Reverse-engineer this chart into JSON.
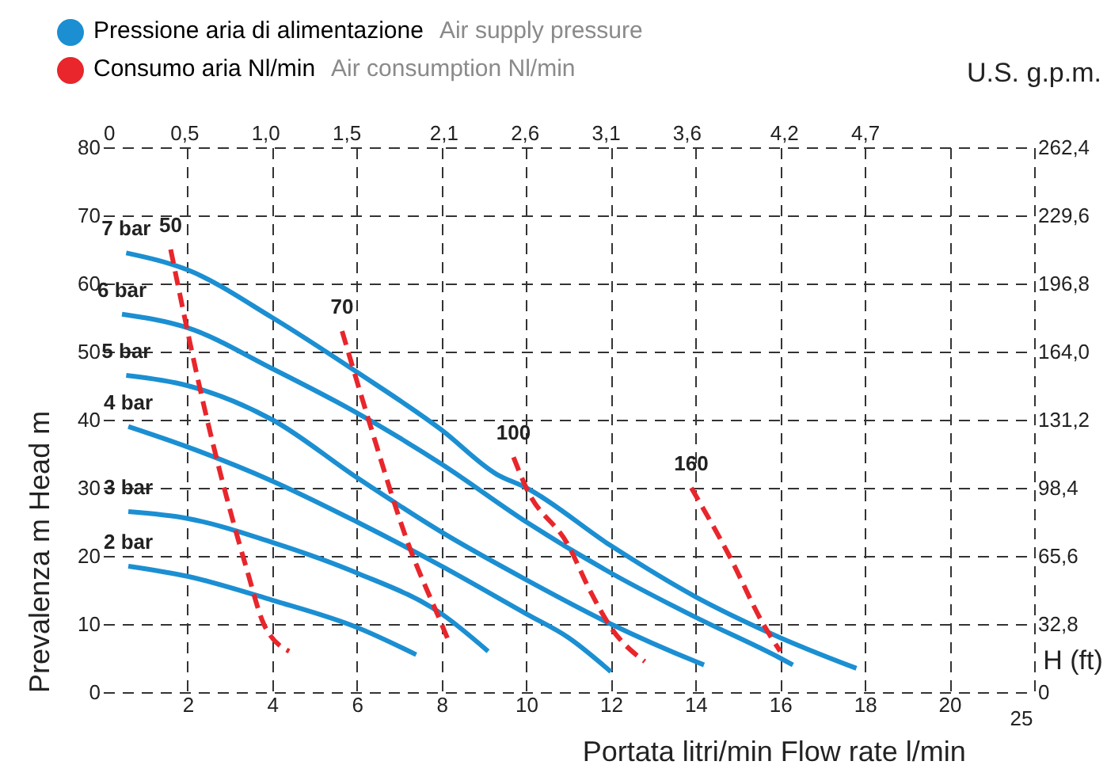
{
  "chart_data": {
    "type": "line",
    "xlabel": "Portata litri/min  Flow rate l/min",
    "ylabel": "Prevalenza m  Head m",
    "y2label": "H (ft)",
    "x2label": "U.S. g.p.m.",
    "annotations": [
      "Pressione aria di alimentazione",
      "Air supply pressure",
      "Consumo aria Nl/min",
      "Air consumption Nl/min",
      "25"
    ],
    "xlim": [
      0,
      22
    ],
    "xticks": [
      2,
      4,
      6,
      8,
      10,
      12,
      14,
      16,
      18,
      20,
      {
        "value": 22,
        "label": null
      }
    ],
    "ylim": [
      0,
      80
    ],
    "yticks": [
      0,
      10,
      20,
      30,
      40,
      50,
      60,
      70,
      80
    ],
    "y2lim": [
      0,
      262.4
    ],
    "y2ticks": [
      {
        "value": 0,
        "label": "0"
      },
      {
        "value": 32.8,
        "label": "32,8"
      },
      {
        "value": 65.6,
        "label": "65,6"
      },
      {
        "value": 98.4,
        "label": "98,4"
      },
      {
        "value": 131.2,
        "label": "131,2"
      },
      {
        "value": 164,
        "label": "164,0"
      },
      {
        "value": 196.8,
        "label": "196,8"
      },
      {
        "value": 229.6,
        "label": "229,6"
      },
      {
        "value": 262.4,
        "label": "262,4"
      }
    ],
    "x2lim": [
      0,
      5.745
    ],
    "x2ticks": [
      {
        "value": 0,
        "label": "0"
      },
      {
        "value": 0.5,
        "label": "0,5"
      },
      {
        "value": 1,
        "label": "1,0"
      },
      {
        "value": 1.5,
        "label": "1,5"
      },
      {
        "value": 2.1,
        "label": "2,1"
      },
      {
        "value": 2.6,
        "label": "2,6"
      },
      {
        "value": 3.1,
        "label": "3,1"
      },
      {
        "value": 3.6,
        "label": "3,6"
      },
      {
        "value": 4.2,
        "label": "4,2"
      },
      {
        "value": 4.7,
        "label": "4,7"
      }
    ],
    "grid": true,
    "line_style": "solid",
    "series": [
      {
        "name": "7 bar",
        "color": "#1b8fd2",
        "x": [
          0.55,
          2,
          4,
          6,
          8,
          9.3,
          10,
          12,
          14,
          16,
          17.8
        ],
        "values": [
          64.5,
          62,
          55,
          47,
          38.5,
          32,
          30,
          21.5,
          14,
          8,
          3.5
        ]
      },
      {
        "name": "6 bar",
        "color": "#1b8fd2",
        "x": [
          0.45,
          2,
          4,
          6,
          8,
          10,
          12,
          14,
          16,
          16.3
        ],
        "values": [
          55.5,
          53.5,
          47.5,
          41,
          33.5,
          25,
          17.5,
          11,
          5,
          4
        ]
      },
      {
        "name": "5 bar",
        "color": "#1b8fd2",
        "x": [
          0.55,
          2,
          4,
          6,
          8,
          10,
          12,
          14,
          14.2
        ],
        "values": [
          46.5,
          45,
          40,
          31.5,
          23.5,
          16.5,
          10,
          4.5,
          4
        ]
      },
      {
        "name": "4 bar",
        "color": "#1b8fd2",
        "x": [
          0.6,
          2,
          4,
          6,
          8,
          10,
          11,
          12
        ],
        "values": [
          39,
          36,
          31,
          25,
          18.5,
          11.5,
          8,
          3
        ]
      },
      {
        "name": "3 bar",
        "color": "#1b8fd2",
        "x": [
          0.6,
          2,
          4,
          6,
          8,
          9.1
        ],
        "values": [
          26.5,
          25.5,
          22,
          17.5,
          11.5,
          6
        ]
      },
      {
        "name": "2 bar",
        "color": "#1b8fd2",
        "x": [
          0.6,
          2,
          4,
          6,
          7.4
        ],
        "values": [
          18.5,
          17,
          13.5,
          9.5,
          5.5
        ]
      },
      {
        "name": "50",
        "color": "#e8262b",
        "line_style": "dashed",
        "x": [
          1.6,
          2.35,
          3.4,
          3.8,
          4.4
        ],
        "values": [
          65,
          43,
          18,
          10,
          6
        ]
      },
      {
        "name": "70",
        "color": "#e8262b",
        "line_style": "dashed",
        "x": [
          5.65,
          6.3,
          7.2,
          8,
          8.2
        ],
        "values": [
          53,
          39.5,
          22,
          10,
          7
        ]
      },
      {
        "name": "100",
        "color": "#e8262b",
        "line_style": "dashed",
        "x": [
          9.7,
          10,
          11,
          11.5,
          12,
          12.8
        ],
        "values": [
          34.5,
          30,
          21.5,
          15,
          9.5,
          4.5
        ]
      },
      {
        "name": "160",
        "color": "#e8262b",
        "line_style": "dashed",
        "x": [
          13.9,
          14.8,
          15.6,
          16
        ],
        "values": [
          30,
          20,
          10,
          6
        ]
      }
    ]
  }
}
